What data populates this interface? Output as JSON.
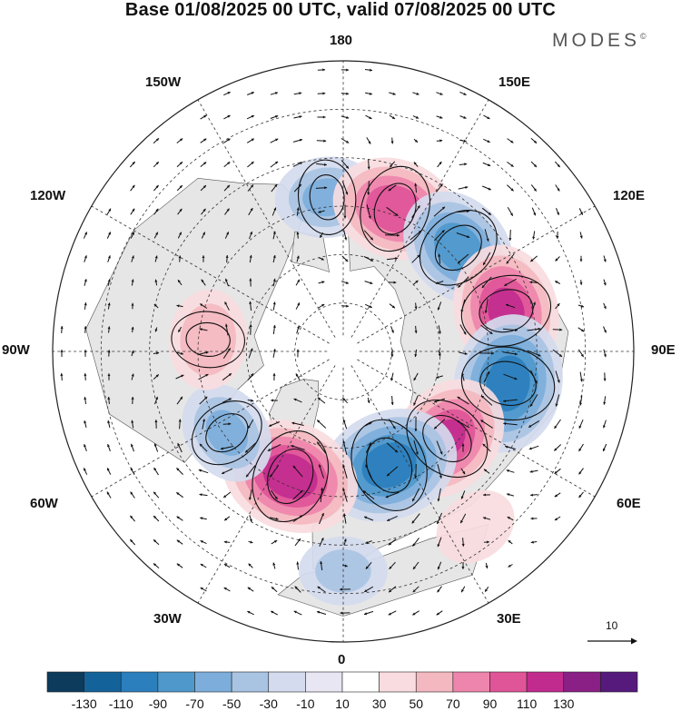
{
  "title": "Base 01/08/2025 00 UTC, valid 07/08/2025 00 UTC",
  "brand": "MODES",
  "brand_mark": "©",
  "longitude_labels": {
    "n180": "180",
    "w150": "150W",
    "e150": "150E",
    "w120": "120W",
    "e120": "120E",
    "w90": "90W",
    "e90": "90E",
    "w60": "60W",
    "e60": "60E",
    "w30": "30W",
    "e30": "30E",
    "s0": "0"
  },
  "reference_vector": {
    "label": "10",
    "magnitude": 10
  },
  "colorbar": {
    "labels": [
      "-130",
      "-110",
      "-90",
      "-70",
      "-50",
      "-30",
      "-10",
      "10",
      "30",
      "50",
      "70",
      "90",
      "110",
      "130"
    ],
    "colors": [
      "#0d3b5c",
      "#13639a",
      "#2b7fbd",
      "#4f98cc",
      "#7daedb",
      "#a9c3e3",
      "#d4dbee",
      "#e8e6f3",
      "#ffffff",
      "#f9dcdf",
      "#f4b8c0",
      "#ee85ac",
      "#e05598",
      "#c22b8e",
      "#8a1f86",
      "#561a7c"
    ]
  },
  "anomaly_centers": [
    {
      "lon_deg": 186,
      "colat_deg": 48,
      "value": -60
    },
    {
      "lon_deg": 160,
      "colat_deg": 47,
      "value": 95
    },
    {
      "lon_deg": 132,
      "colat_deg": 48,
      "value": -90
    },
    {
      "lon_deg": 104,
      "colat_deg": 52,
      "value": 105
    },
    {
      "lon_deg": 79,
      "colat_deg": 52,
      "value": -115
    },
    {
      "lon_deg": 50,
      "colat_deg": 42,
      "value": 100
    },
    {
      "lon_deg": 22,
      "colat_deg": 38,
      "value": -115
    },
    {
      "lon_deg": -23,
      "colat_deg": 42,
      "value": 115
    },
    {
      "lon_deg": -55,
      "colat_deg": 44,
      "value": -60
    },
    {
      "lon_deg": -95,
      "colat_deg": 42,
      "value": 55
    },
    {
      "lon_deg": 0,
      "colat_deg": 68,
      "value": -40
    },
    {
      "lon_deg": 37,
      "colat_deg": 68,
      "value": 35
    }
  ]
}
